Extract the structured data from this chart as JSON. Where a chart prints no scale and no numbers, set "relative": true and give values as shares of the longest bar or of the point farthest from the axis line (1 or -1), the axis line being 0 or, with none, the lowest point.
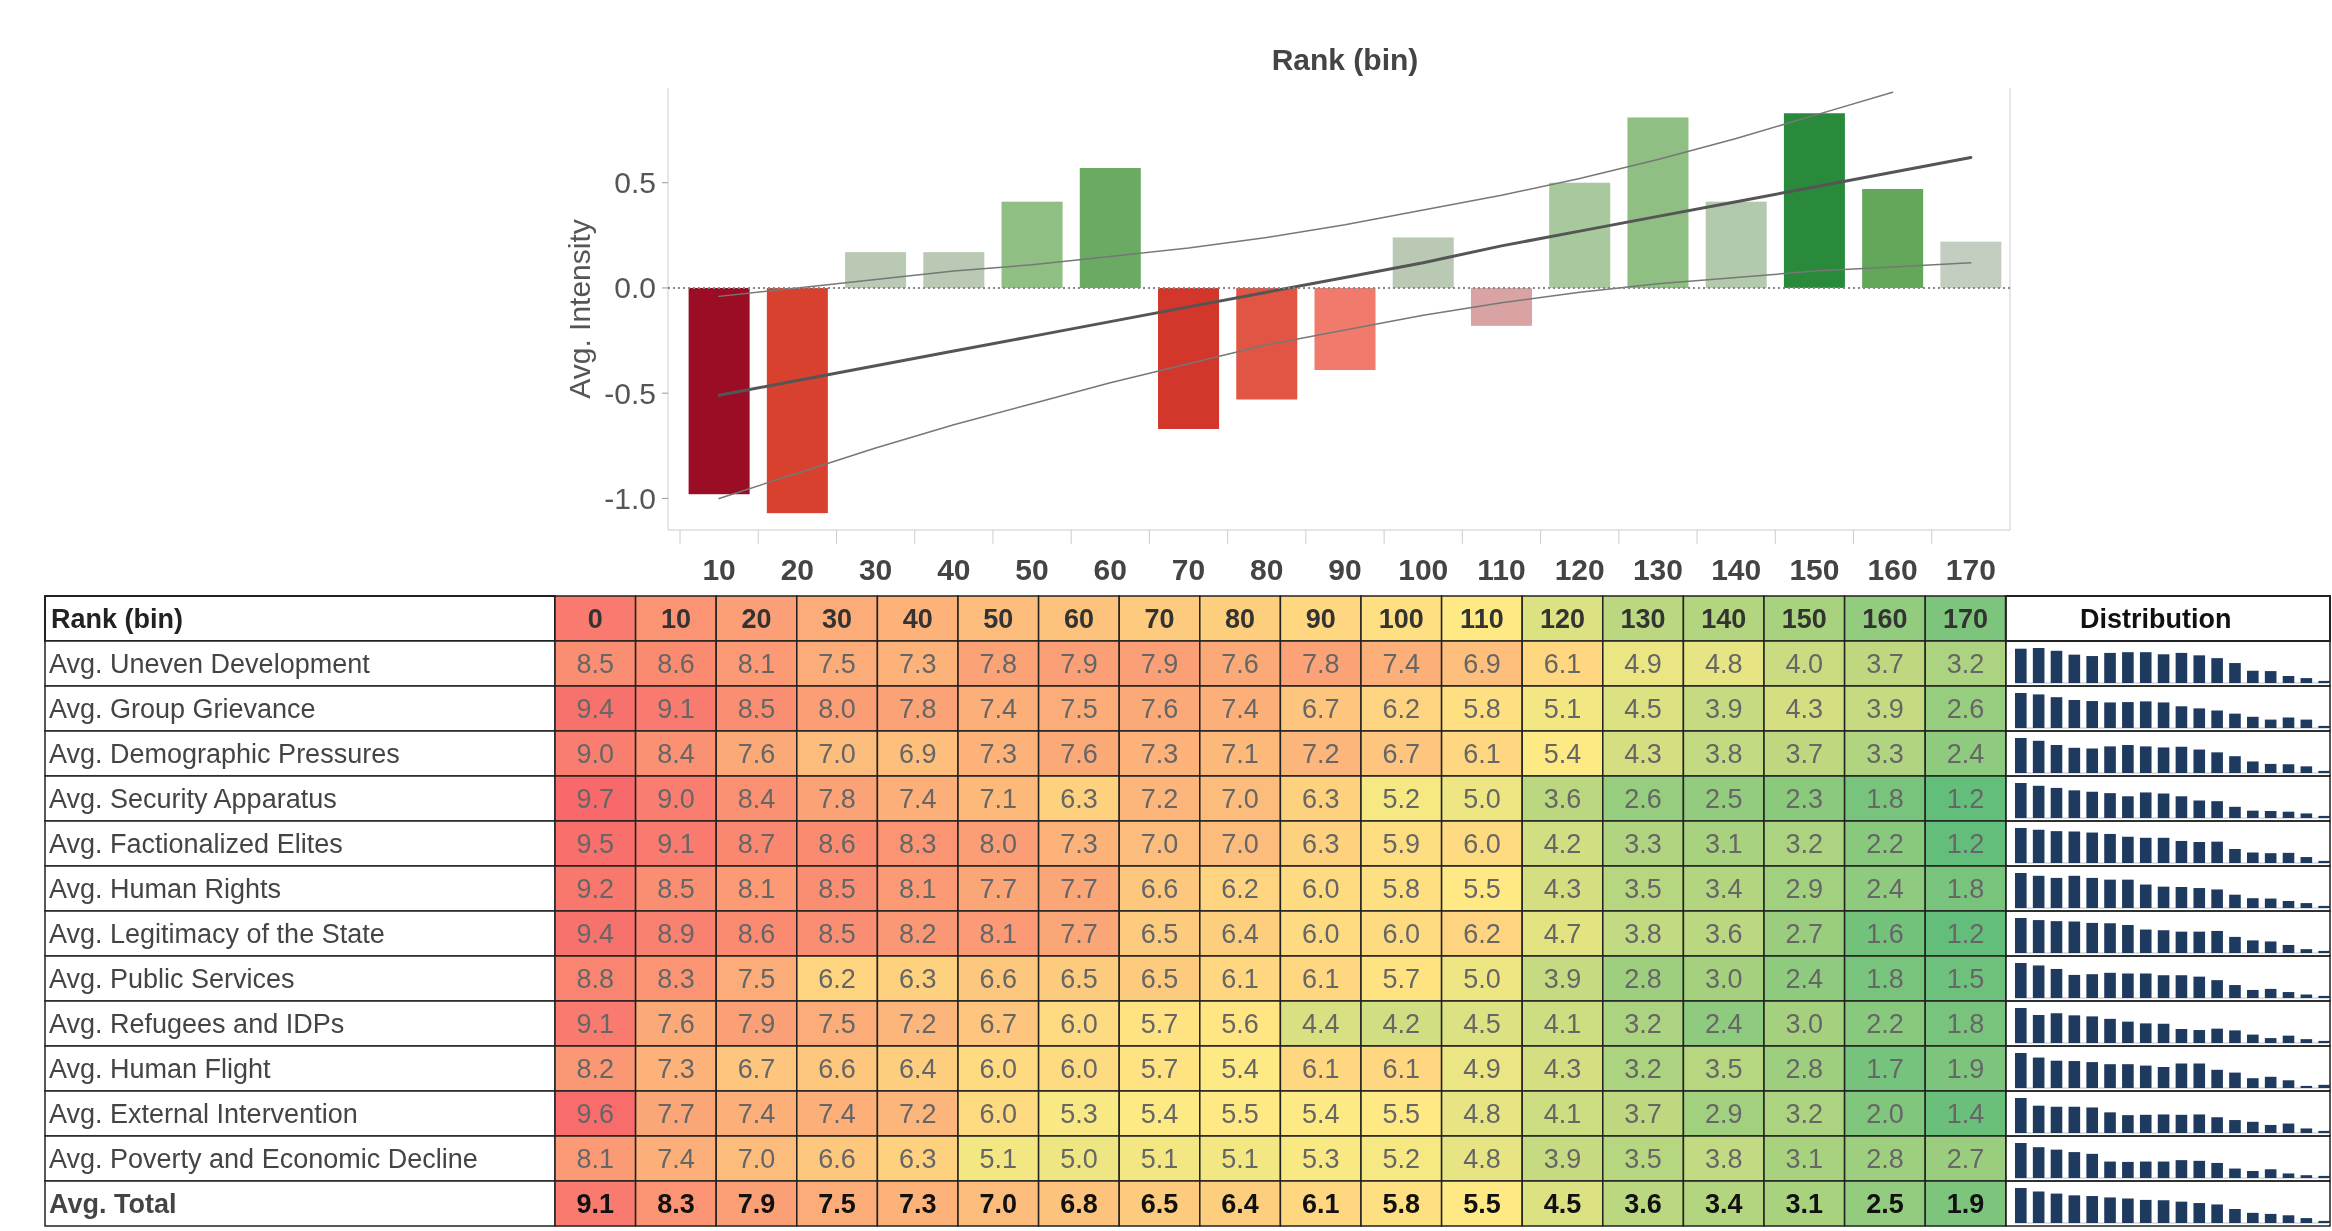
{
  "chart_data": [
    {
      "type": "bar",
      "xlabel": "Rank (bin)",
      "ylabel": "Avg. Intensity",
      "categories": [
        "10",
        "20",
        "30",
        "40",
        "50",
        "60",
        "70",
        "80",
        "90",
        "100",
        "110",
        "120",
        "130",
        "140",
        "150",
        "160",
        "170"
      ],
      "series": [
        {
          "type": "bar",
          "values": [
            -0.98,
            -1.07,
            0.17,
            0.17,
            0.41,
            0.57,
            -0.67,
            -0.53,
            -0.39,
            0.24,
            -0.18,
            0.5,
            0.81,
            0.41,
            0.83,
            0.47,
            0.22
          ],
          "colors": [
            "#9b0d24",
            "#d9412f",
            "#b9c9b4",
            "#b9c9b4",
            "#8fbf82",
            "#6aaa62",
            "#d3362a",
            "#e05543",
            "#f07b6c",
            "#b9c9b4",
            "#d9a3a3",
            "#a8c99e",
            "#8fbf82",
            "#b3c9ad",
            "#2a8a3c",
            "#62a75a",
            "#c4cec0"
          ]
        },
        {
          "type": "line",
          "color": "#555555",
          "values": [
            -0.51,
            -0.44,
            -0.37,
            -0.3,
            -0.23,
            -0.16,
            -0.09,
            -0.02,
            0.05,
            0.12,
            0.2,
            0.27,
            0.34,
            0.41,
            0.48,
            0.55,
            0.62
          ]
        },
        {
          "type": "line",
          "color": "#777777",
          "values": [
            -1.0,
            -0.88,
            -0.76,
            -0.65,
            -0.55,
            -0.45,
            -0.36,
            -0.27,
            -0.2,
            -0.13,
            -0.07,
            -0.02,
            0.02,
            0.05,
            0.08,
            0.1,
            0.12
          ]
        },
        {
          "type": "line",
          "color": "#777777",
          "values": [
            -0.04,
            0.0,
            0.04,
            0.08,
            0.11,
            0.15,
            0.19,
            0.24,
            0.3,
            0.37,
            0.44,
            0.52,
            0.61,
            0.71,
            0.82,
            0.93,
            null
          ]
        }
      ],
      "ylim": [
        -1.15,
        0.95
      ],
      "yticks": [
        {
          "value": -1,
          "label": "-1.0"
        },
        {
          "value": -0.5,
          "label": "-0.5"
        },
        {
          "value": 0,
          "label": "0.0"
        },
        {
          "value": 0.5,
          "label": "0.5"
        }
      ],
      "ref_lines": [
        {
          "axis": "y",
          "value": 0,
          "line_style": "dotted",
          "color": "#888888"
        }
      ],
      "grid": false
    },
    {
      "type": "heatmap",
      "ylabel": "Rank (bin)",
      "annotations": [
        "Distribution"
      ],
      "colors": [
        "#63be7b",
        "#ffeb84",
        "#f8696b"
      ],
      "categories": [
        "0",
        "10",
        "20",
        "30",
        "40",
        "50",
        "60",
        "70",
        "80",
        "90",
        "100",
        "110",
        "120",
        "130",
        "140",
        "150",
        "160",
        "170"
      ],
      "y_categories": [
        "Avg. Uneven Development",
        "Avg. Group Grievance",
        "Avg. Demographic Pressures",
        "Avg. Security Apparatus",
        "Avg. Factionalized Elites",
        "Avg. Human Rights",
        "Avg. Legitimacy of the State",
        "Avg. Public Services",
        "Avg. Refugees and IDPs",
        "Avg. Human Flight",
        "Avg. External Intervention",
        "Avg. Poverty and Economic Decline",
        "Avg. Total"
      ],
      "cells": [
        [
          8.5,
          8.6,
          8.1,
          7.5,
          7.3,
          7.8,
          7.9,
          7.9,
          7.6,
          7.8,
          7.4,
          6.9,
          6.1,
          4.9,
          4.8,
          4.0,
          3.7,
          3.2
        ],
        [
          9.4,
          9.1,
          8.5,
          8.0,
          7.8,
          7.4,
          7.5,
          7.6,
          7.4,
          6.7,
          6.2,
          5.8,
          5.1,
          4.5,
          3.9,
          4.3,
          3.9,
          2.6
        ],
        [
          9.0,
          8.4,
          7.6,
          7.0,
          6.9,
          7.3,
          7.6,
          7.3,
          7.1,
          7.2,
          6.7,
          6.1,
          5.4,
          4.3,
          3.8,
          3.7,
          3.3,
          2.4
        ],
        [
          9.7,
          9.0,
          8.4,
          7.8,
          7.4,
          7.1,
          6.3,
          7.2,
          7.0,
          6.3,
          5.2,
          5.0,
          3.6,
          2.6,
          2.5,
          2.3,
          1.8,
          1.2
        ],
        [
          9.5,
          9.1,
          8.7,
          8.6,
          8.3,
          8.0,
          7.3,
          7.0,
          7.0,
          6.3,
          5.9,
          6.0,
          4.2,
          3.3,
          3.1,
          3.2,
          2.2,
          1.2
        ],
        [
          9.2,
          8.5,
          8.1,
          8.5,
          8.1,
          7.7,
          7.7,
          6.6,
          6.2,
          6.0,
          5.8,
          5.5,
          4.3,
          3.5,
          3.4,
          2.9,
          2.4,
          1.8
        ],
        [
          9.4,
          8.9,
          8.6,
          8.5,
          8.2,
          8.1,
          7.7,
          6.5,
          6.4,
          6.0,
          6.0,
          6.2,
          4.7,
          3.8,
          3.6,
          2.7,
          1.6,
          1.2
        ],
        [
          8.8,
          8.3,
          7.5,
          6.2,
          6.3,
          6.6,
          6.5,
          6.5,
          6.1,
          6.1,
          5.7,
          5.0,
          3.9,
          2.8,
          3.0,
          2.4,
          1.8,
          1.5
        ],
        [
          9.1,
          7.6,
          7.9,
          7.5,
          7.2,
          6.7,
          6.0,
          5.7,
          5.6,
          4.4,
          4.2,
          4.5,
          4.1,
          3.2,
          2.4,
          3.0,
          2.2,
          1.8
        ],
        [
          8.2,
          7.3,
          6.7,
          6.6,
          6.4,
          6.0,
          6.0,
          5.7,
          5.4,
          6.1,
          6.1,
          4.9,
          4.3,
          3.2,
          3.5,
          2.8,
          1.7,
          1.9
        ],
        [
          9.6,
          7.7,
          7.4,
          7.4,
          7.2,
          6.0,
          5.3,
          5.4,
          5.5,
          5.4,
          5.5,
          4.8,
          4.1,
          3.7,
          2.9,
          3.2,
          2.0,
          1.4
        ],
        [
          8.1,
          7.4,
          7.0,
          6.6,
          6.3,
          5.1,
          5.0,
          5.1,
          5.1,
          5.3,
          5.2,
          4.8,
          3.9,
          3.5,
          3.8,
          3.1,
          2.8,
          2.7
        ],
        [
          9.1,
          8.3,
          7.9,
          7.5,
          7.3,
          7.0,
          6.8,
          6.5,
          6.4,
          6.1,
          5.8,
          5.5,
          4.5,
          3.6,
          3.4,
          3.1,
          2.5,
          1.9
        ]
      ],
      "cell_labels": [
        [
          "8.5",
          "8.6",
          "8.1",
          "7.5",
          "7.3",
          "7.8",
          "7.9",
          "7.9",
          "7.6",
          "7.8",
          "7.4",
          "6.9",
          "6.1",
          "4.9",
          "4.8",
          "4.0",
          "3.7",
          "3.2"
        ],
        [
          "9.4",
          "9.1",
          "8.5",
          "8.0",
          "7.8",
          "7.4",
          "7.5",
          "7.6",
          "7.4",
          "6.7",
          "6.2",
          "5.8",
          "5.1",
          "4.5",
          "3.9",
          "4.3",
          "3.9",
          "2.6"
        ],
        [
          "9.0",
          "8.4",
          "7.6",
          "7.0",
          "6.9",
          "7.3",
          "7.6",
          "7.3",
          "7.1",
          "7.2",
          "6.7",
          "6.1",
          "5.4",
          "4.3",
          "3.8",
          "3.7",
          "3.3",
          "2.4"
        ],
        [
          "9.7",
          "9.0",
          "8.4",
          "7.8",
          "7.4",
          "7.1",
          "6.3",
          "7.2",
          "7.0",
          "6.3",
          "5.2",
          "5.0",
          "3.6",
          "2.6",
          "2.5",
          "2.3",
          "1.8",
          "1.2"
        ],
        [
          "9.5",
          "9.1",
          "8.7",
          "8.6",
          "8.3",
          "8.0",
          "7.3",
          "7.0",
          "7.0",
          "6.3",
          "5.9",
          "6.0",
          "4.2",
          "3.3",
          "3.1",
          "3.2",
          "2.2",
          "1.2"
        ],
        [
          "9.2",
          "8.5",
          "8.1",
          "8.5",
          "8.1",
          "7.7",
          "7.7",
          "6.6",
          "6.2",
          "6.0",
          "5.8",
          "5.5",
          "4.3",
          "3.5",
          "3.4",
          "2.9",
          "2.4",
          "1.8"
        ],
        [
          "9.4",
          "8.9",
          "8.6",
          "8.5",
          "8.2",
          "8.1",
          "7.7",
          "6.5",
          "6.4",
          "6.0",
          "6.0",
          "6.2",
          "4.7",
          "3.8",
          "3.6",
          "2.7",
          "1.6",
          "1.2"
        ],
        [
          "8.8",
          "8.3",
          "7.5",
          "6.2",
          "6.3",
          "6.6",
          "6.5",
          "6.5",
          "6.1",
          "6.1",
          "5.7",
          "5.0",
          "3.9",
          "2.8",
          "3.0",
          "2.4",
          "1.8",
          "1.5"
        ],
        [
          "9.1",
          "7.6",
          "7.9",
          "7.5",
          "7.2",
          "6.7",
          "6.0",
          "5.7",
          "5.6",
          "4.4",
          "4.2",
          "4.5",
          "4.1",
          "3.2",
          "2.4",
          "3.0",
          "2.2",
          "1.8"
        ],
        [
          "8.2",
          "7.3",
          "6.7",
          "6.6",
          "6.4",
          "6.0",
          "6.0",
          "5.7",
          "5.4",
          "6.1",
          "6.1",
          "4.9",
          "4.3",
          "3.2",
          "3.5",
          "2.8",
          "1.7",
          "1.9"
        ],
        [
          "9.6",
          "7.7",
          "7.4",
          "7.4",
          "7.2",
          "6.0",
          "5.3",
          "5.4",
          "5.5",
          "5.4",
          "5.5",
          "4.8",
          "4.1",
          "3.7",
          "2.9",
          "3.2",
          "2.0",
          "1.4"
        ],
        [
          "8.1",
          "7.4",
          "7.0",
          "6.6",
          "6.3",
          "5.1",
          "5.0",
          "5.1",
          "5.1",
          "5.3",
          "5.2",
          "4.8",
          "3.9",
          "3.5",
          "3.8",
          "3.1",
          "2.8",
          "2.7"
        ],
        [
          "9.1",
          "8.3",
          "7.9",
          "7.5",
          "7.3",
          "7.0",
          "6.8",
          "6.5",
          "6.4",
          "6.1",
          "5.8",
          "5.5",
          "4.5",
          "3.6",
          "3.4",
          "3.1",
          "2.5",
          "1.9"
        ]
      ],
      "data_labels": true
    },
    {
      "type": "bar",
      "relative": true,
      "color": "#1f3a5f",
      "categories": [
        null,
        null,
        null,
        null,
        null,
        null,
        null,
        null,
        null,
        null,
        null,
        null,
        null,
        null,
        null,
        null,
        null,
        null
      ],
      "values": [
        0.98,
        1,
        0.92,
        0.81,
        0.77,
        0.86,
        0.88,
        0.88,
        0.82,
        0.86,
        0.79,
        0.71,
        0.57,
        0.35,
        0.34,
        0.2,
        0.14,
        0.06
      ]
    },
    {
      "type": "bar",
      "relative": true,
      "color": "#1f3a5f",
      "categories": [
        null,
        null,
        null,
        null,
        null,
        null,
        null,
        null,
        null,
        null,
        null,
        null,
        null,
        null,
        null,
        null,
        null,
        null
      ],
      "values": [
        1,
        0.96,
        0.88,
        0.8,
        0.77,
        0.73,
        0.74,
        0.76,
        0.73,
        0.62,
        0.56,
        0.5,
        0.41,
        0.32,
        0.24,
        0.3,
        0.24,
        0.06
      ]
    },
    {
      "type": "bar",
      "relative": true,
      "color": "#1f3a5f",
      "categories": [
        null,
        null,
        null,
        null,
        null,
        null,
        null,
        null,
        null,
        null,
        null,
        null,
        null,
        null,
        null,
        null,
        null,
        null
      ],
      "values": [
        1,
        0.92,
        0.8,
        0.72,
        0.7,
        0.76,
        0.8,
        0.76,
        0.73,
        0.75,
        0.67,
        0.59,
        0.48,
        0.33,
        0.26,
        0.25,
        0.19,
        0.06
      ]
    },
    {
      "type": "bar",
      "relative": true,
      "color": "#1f3a5f",
      "categories": [
        null,
        null,
        null,
        null,
        null,
        null,
        null,
        null,
        null,
        null,
        null,
        null,
        null,
        null,
        null,
        null,
        null,
        null
      ],
      "values": [
        1,
        0.92,
        0.86,
        0.79,
        0.75,
        0.71,
        0.62,
        0.73,
        0.7,
        0.62,
        0.5,
        0.48,
        0.32,
        0.21,
        0.2,
        0.18,
        0.13,
        0.06
      ]
    },
    {
      "type": "bar",
      "relative": true,
      "color": "#1f3a5f",
      "categories": [
        null,
        null,
        null,
        null,
        null,
        null,
        null,
        null,
        null,
        null,
        null,
        null,
        null,
        null,
        null,
        null,
        null,
        null
      ],
      "values": [
        1,
        0.95,
        0.91,
        0.9,
        0.87,
        0.83,
        0.75,
        0.72,
        0.72,
        0.63,
        0.6,
        0.61,
        0.4,
        0.3,
        0.28,
        0.29,
        0.17,
        0.06
      ]
    },
    {
      "type": "bar",
      "relative": true,
      "color": "#1f3a5f",
      "categories": [
        null,
        null,
        null,
        null,
        null,
        null,
        null,
        null,
        null,
        null,
        null,
        null,
        null,
        null,
        null,
        null,
        null,
        null
      ],
      "values": [
        1,
        0.92,
        0.86,
        0.92,
        0.86,
        0.81,
        0.81,
        0.67,
        0.61,
        0.6,
        0.57,
        0.53,
        0.38,
        0.28,
        0.27,
        0.2,
        0.14,
        0.06
      ]
    },
    {
      "type": "bar",
      "relative": true,
      "color": "#1f3a5f",
      "categories": [
        null,
        null,
        null,
        null,
        null,
        null,
        null,
        null,
        null,
        null,
        null,
        null,
        null,
        null,
        null,
        null,
        null,
        null
      ],
      "values": [
        1,
        0.94,
        0.91,
        0.9,
        0.86,
        0.85,
        0.8,
        0.67,
        0.65,
        0.61,
        0.61,
        0.63,
        0.46,
        0.36,
        0.33,
        0.23,
        0.11,
        0.06
      ]
    },
    {
      "type": "bar",
      "relative": true,
      "color": "#1f3a5f",
      "categories": [
        null,
        null,
        null,
        null,
        null,
        null,
        null,
        null,
        null,
        null,
        null,
        null,
        null,
        null,
        null,
        null,
        null,
        null
      ],
      "values": [
        1,
        0.93,
        0.83,
        0.66,
        0.68,
        0.72,
        0.7,
        0.7,
        0.65,
        0.65,
        0.61,
        0.51,
        0.37,
        0.23,
        0.26,
        0.17,
        0.1,
        0.06
      ]
    },
    {
      "type": "bar",
      "relative": true,
      "color": "#1f3a5f",
      "categories": [
        null,
        null,
        null,
        null,
        null,
        null,
        null,
        null,
        null,
        null,
        null,
        null,
        null,
        null,
        null,
        null,
        null,
        null
      ],
      "values": [
        1,
        0.8,
        0.85,
        0.79,
        0.76,
        0.69,
        0.61,
        0.56,
        0.55,
        0.4,
        0.37,
        0.41,
        0.36,
        0.24,
        0.14,
        0.21,
        0.11,
        0.06
      ]
    },
    {
      "type": "bar",
      "relative": true,
      "color": "#1f3a5f",
      "categories": [
        null,
        null,
        null,
        null,
        null,
        null,
        null,
        null,
        null,
        null,
        null,
        null,
        null,
        null,
        null,
        null,
        null,
        null
      ],
      "values": [
        1,
        0.87,
        0.78,
        0.77,
        0.74,
        0.68,
        0.68,
        0.64,
        0.6,
        0.7,
        0.7,
        0.52,
        0.44,
        0.28,
        0.32,
        0.22,
        0.06,
        0.09
      ]
    },
    {
      "type": "bar",
      "relative": true,
      "color": "#1f3a5f",
      "categories": [
        null,
        null,
        null,
        null,
        null,
        null,
        null,
        null,
        null,
        null,
        null,
        null,
        null,
        null,
        null,
        null,
        null,
        null
      ],
      "values": [
        1,
        0.78,
        0.75,
        0.75,
        0.73,
        0.59,
        0.51,
        0.52,
        0.53,
        0.52,
        0.53,
        0.45,
        0.37,
        0.32,
        0.23,
        0.27,
        0.13,
        0.06
      ]
    },
    {
      "type": "bar",
      "relative": true,
      "color": "#1f3a5f",
      "categories": [
        null,
        null,
        null,
        null,
        null,
        null,
        null,
        null,
        null,
        null,
        null,
        null,
        null,
        null,
        null,
        null,
        null,
        null
      ],
      "values": [
        1,
        0.88,
        0.81,
        0.74,
        0.69,
        0.47,
        0.46,
        0.47,
        0.47,
        0.51,
        0.49,
        0.43,
        0.27,
        0.2,
        0.25,
        0.13,
        0.08,
        0.06
      ]
    },
    {
      "type": "bar",
      "relative": true,
      "color": "#1f3a5f",
      "categories": [
        null,
        null,
        null,
        null,
        null,
        null,
        null,
        null,
        null,
        null,
        null,
        null,
        null,
        null,
        null,
        null,
        null,
        null
      ],
      "values": [
        1,
        0.9,
        0.84,
        0.79,
        0.77,
        0.73,
        0.7,
        0.66,
        0.65,
        0.61,
        0.57,
        0.53,
        0.4,
        0.29,
        0.26,
        0.22,
        0.14,
        0.06
      ]
    }
  ]
}
